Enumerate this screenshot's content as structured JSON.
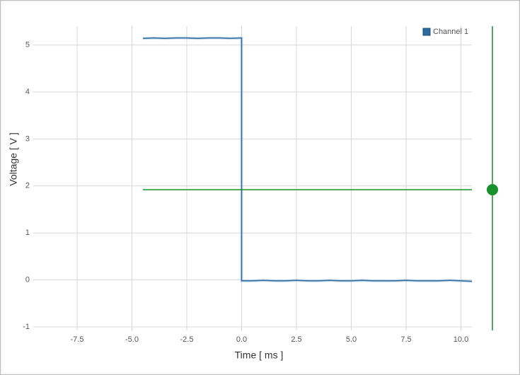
{
  "chart_data": {
    "type": "line",
    "x_label": "Time [ ms ]",
    "y_label": "Voltage [ V ]",
    "x": [
      -4.5,
      -4,
      -3.5,
      -3,
      -2.5,
      -2,
      -1.5,
      -1,
      -0.5,
      0,
      0,
      0.5,
      1,
      1.5,
      2,
      2.5,
      3,
      3.5,
      4,
      4.5,
      5,
      5.5,
      6,
      6.5,
      7,
      7.5,
      8,
      8.5,
      9,
      9.5,
      10,
      10.5
    ],
    "series": [
      {
        "name": "Channel 1",
        "color": "#2b6a9c",
        "values": [
          5.14,
          5.15,
          5.14,
          5.15,
          5.15,
          5.14,
          5.15,
          5.15,
          5.14,
          5.15,
          -0.02,
          -0.02,
          -0.01,
          -0.02,
          -0.02,
          -0.01,
          -0.02,
          -0.02,
          -0.01,
          -0.02,
          -0.02,
          -0.01,
          -0.02,
          -0.02,
          -0.02,
          -0.01,
          -0.02,
          -0.02,
          -0.02,
          -0.01,
          -0.02,
          -0.03
        ]
      }
    ],
    "trigger_level": 1.92,
    "trigger_color": "#17912b",
    "xlim": [
      -9.5,
      10.5
    ],
    "xticks": [
      -7.5,
      {
        "value": -5,
        "label": "-5.0"
      },
      -2.5,
      {
        "value": 0,
        "label": "0.0"
      },
      2.5,
      {
        "value": 5,
        "label": "5.0"
      },
      7.5,
      {
        "value": 10,
        "label": "10.0"
      }
    ],
    "ylim": [
      -1,
      5.4
    ],
    "yticks": [
      -1,
      0,
      1,
      2,
      3,
      4,
      5
    ],
    "grid": true,
    "legend": "top-right"
  }
}
